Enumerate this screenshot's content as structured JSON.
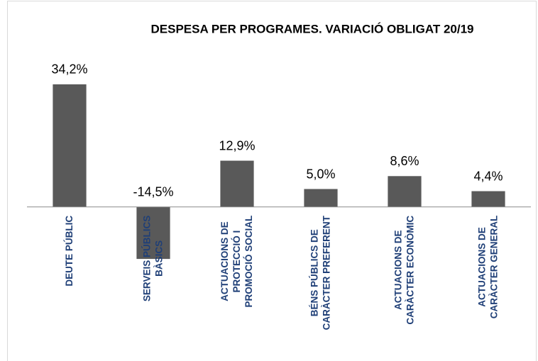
{
  "chart_data": {
    "type": "bar",
    "title": "DESPESA PER PROGRAMES. VARIACIÓ OBLIGAT 20/19",
    "categories": [
      "DEUTE PÚBLIC",
      "SERVEIS PÚBLICS\nBÀSICS",
      "ACTUACIONS DE\nPROTECCIÓ I\nPROMOCIÓ SOCIAL",
      "BÉNS PÚBLICS DE\nCARÀCTER PREFERENT",
      "ACTUACIONS DE\nCARÀCTER ECONÒMIC",
      "ACTUACIONS DE\nCARÀCTER GENERAL"
    ],
    "values": [
      34.2,
      -14.5,
      12.9,
      5.0,
      8.6,
      4.4
    ],
    "value_labels": [
      "34,2%",
      "-14,5%",
      "12,9%",
      "5,0%",
      "8,6%",
      "4,4%"
    ],
    "color": "#595959",
    "ylim": [
      -40,
      50
    ]
  }
}
